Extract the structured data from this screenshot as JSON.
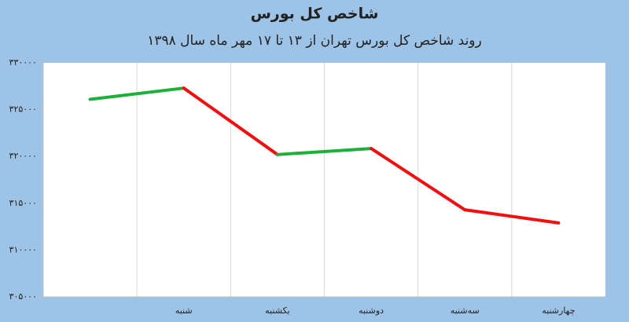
{
  "chart_data": {
    "type": "line",
    "title": "شاخص کل بورس",
    "subtitle": "روند شاخص کل بورس تهران از ۱۳ تا ۱۷ مهر ماه سال ۱۳۹۸",
    "categories": [
      null,
      "شنبه",
      "یکشنبه",
      "دوشنبه",
      "سه‌شنبه",
      "چهارشنبه"
    ],
    "values": [
      326100,
      327300,
      320200,
      320850,
      314300,
      312900
    ],
    "up_color": "#1db13a",
    "down_color": "#f01010",
    "ylim": [
      305000,
      330000
    ],
    "yticks": [
      {
        "value": 305000,
        "label": "۳۰۵۰۰۰"
      },
      {
        "value": 310000,
        "label": "۳۱۰۰۰۰"
      },
      {
        "value": 315000,
        "label": "۳۱۵۰۰۰"
      },
      {
        "value": 320000,
        "label": "۳۲۰۰۰۰"
      },
      {
        "value": 325000,
        "label": "۳۲۵۰۰۰"
      },
      {
        "value": 330000,
        "label": "۳۳۰۰۰۰"
      }
    ],
    "grid": true
  }
}
